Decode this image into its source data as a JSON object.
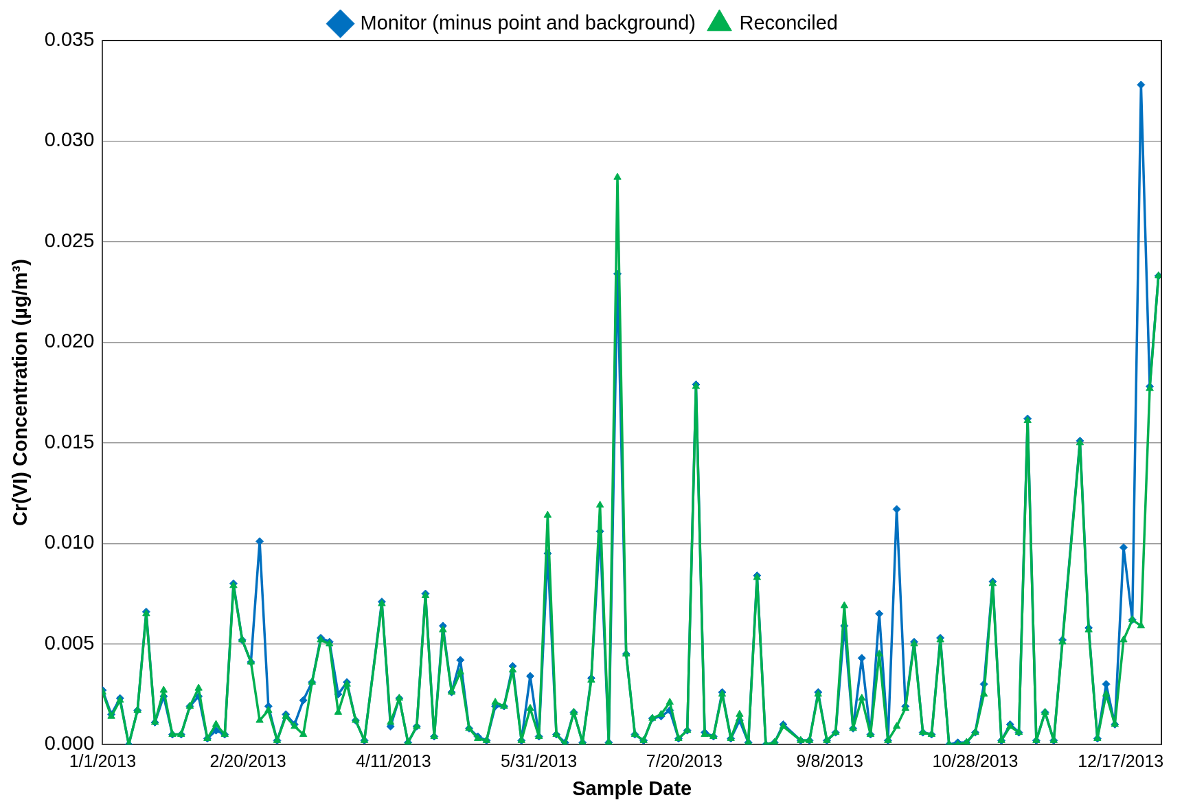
{
  "chart_data": {
    "type": "line",
    "xlabel": "Sample Date",
    "ylabel": "Cr(VI) Concentration (µg/m³)",
    "x": [
      "2013-01-01",
      "2013-01-04",
      "2013-01-07",
      "2013-01-10",
      "2013-01-13",
      "2013-01-16",
      "2013-01-19",
      "2013-01-22",
      "2013-01-25",
      "2013-01-28",
      "2013-01-31",
      "2013-02-03",
      "2013-02-06",
      "2013-02-09",
      "2013-02-12",
      "2013-02-15",
      "2013-02-18",
      "2013-02-21",
      "2013-02-24",
      "2013-02-27",
      "2013-03-02",
      "2013-03-05",
      "2013-03-08",
      "2013-03-11",
      "2013-03-14",
      "2013-03-17",
      "2013-03-20",
      "2013-03-23",
      "2013-03-26",
      "2013-03-29",
      "2013-04-01",
      "2013-04-07",
      "2013-04-10",
      "2013-04-13",
      "2013-04-16",
      "2013-04-19",
      "2013-04-22",
      "2013-04-25",
      "2013-04-28",
      "2013-05-01",
      "2013-05-04",
      "2013-05-07",
      "2013-05-10",
      "2013-05-13",
      "2013-05-16",
      "2013-05-19",
      "2013-05-22",
      "2013-05-25",
      "2013-05-28",
      "2013-05-31",
      "2013-06-03",
      "2013-06-06",
      "2013-06-09",
      "2013-06-12",
      "2013-06-15",
      "2013-06-18",
      "2013-06-21",
      "2013-06-24",
      "2013-06-27",
      "2013-06-30",
      "2013-07-03",
      "2013-07-06",
      "2013-07-09",
      "2013-07-12",
      "2013-07-15",
      "2013-07-18",
      "2013-07-21",
      "2013-07-24",
      "2013-07-27",
      "2013-07-30",
      "2013-08-02",
      "2013-08-05",
      "2013-08-08",
      "2013-08-11",
      "2013-08-14",
      "2013-08-17",
      "2013-08-20",
      "2013-08-23",
      "2013-08-29",
      "2013-09-01",
      "2013-09-04",
      "2013-09-07",
      "2013-09-10",
      "2013-09-13",
      "2013-09-16",
      "2013-09-19",
      "2013-09-22",
      "2013-09-25",
      "2013-09-28",
      "2013-10-01",
      "2013-10-04",
      "2013-10-07",
      "2013-10-10",
      "2013-10-13",
      "2013-10-16",
      "2013-10-19",
      "2013-10-22",
      "2013-10-25",
      "2013-10-28",
      "2013-10-31",
      "2013-11-03",
      "2013-11-06",
      "2013-11-09",
      "2013-11-12",
      "2013-11-15",
      "2013-11-18",
      "2013-11-21",
      "2013-11-24",
      "2013-11-27",
      "2013-12-03",
      "2013-12-06",
      "2013-12-09",
      "2013-12-12",
      "2013-12-15",
      "2013-12-18",
      "2013-12-21",
      "2013-12-24",
      "2013-12-27",
      "2013-12-30"
    ],
    "series": [
      {
        "name": "Monitor (minus point and background)",
        "color": "#0070c0",
        "marker": "diamond",
        "values": [
          0.0027,
          0.0015,
          0.0023,
          0.0,
          0.0017,
          0.0066,
          0.0011,
          0.0024,
          0.0005,
          0.0005,
          0.0019,
          0.0024,
          0.0003,
          0.0007,
          0.0005,
          0.008,
          0.0052,
          0.0041,
          0.0101,
          0.0019,
          0.0002,
          0.0015,
          0.001,
          0.0022,
          0.0031,
          0.0053,
          0.0051,
          0.0025,
          0.0031,
          0.0012,
          0.0002,
          0.0071,
          0.0009,
          0.0023,
          0.0001,
          0.0009,
          0.0075,
          0.0004,
          0.0059,
          0.0026,
          0.0042,
          0.0008,
          0.0004,
          0.0002,
          0.0019,
          0.0019,
          0.0039,
          0.0002,
          0.0034,
          0.0004,
          0.0095,
          0.0005,
          0.0001,
          0.0016,
          0.0001,
          0.0033,
          0.0106,
          0.0001,
          0.0234,
          0.0045,
          0.0005,
          0.0002,
          0.0013,
          0.0014,
          0.0017,
          0.0003,
          0.0007,
          0.0179,
          0.0006,
          0.0004,
          0.0026,
          0.0003,
          0.0012,
          0.0001,
          0.0084,
          0.0,
          0.0001,
          0.001,
          0.0002,
          0.0002,
          0.0026,
          0.0002,
          0.0006,
          0.0059,
          0.0008,
          0.0043,
          0.0005,
          0.0065,
          0.0002,
          0.0117,
          0.0019,
          0.0051,
          0.0006,
          0.0005,
          0.0053,
          0.0,
          0.0001,
          0.0001,
          0.0006,
          0.003,
          0.0081,
          0.0002,
          0.001,
          0.0006,
          0.0162,
          0.0002,
          0.0016,
          0.0002,
          0.0052,
          0.0151,
          0.0058,
          0.0003,
          0.003,
          0.001,
          0.0098,
          0.0062,
          0.0328,
          0.0178,
          0.0233
        ]
      },
      {
        "name": "Reconciled",
        "color": "#00b050",
        "marker": "triangle",
        "values": [
          0.0026,
          0.0014,
          0.0022,
          0.0,
          0.0017,
          0.0065,
          0.0011,
          0.0027,
          0.0005,
          0.0005,
          0.0019,
          0.0028,
          0.0003,
          0.001,
          0.0005,
          0.0079,
          0.0052,
          0.0041,
          0.0012,
          0.0017,
          0.0002,
          0.0014,
          0.0009,
          0.0005,
          0.0031,
          0.0052,
          0.005,
          0.0016,
          0.003,
          0.0012,
          0.0002,
          0.007,
          0.0011,
          0.0023,
          0.0001,
          0.0009,
          0.0074,
          0.0004,
          0.0057,
          0.0026,
          0.0036,
          0.0008,
          0.0003,
          0.0002,
          0.0021,
          0.0019,
          0.0037,
          0.0002,
          0.0018,
          0.0004,
          0.0114,
          0.0005,
          0.0,
          0.0016,
          0.0001,
          0.0032,
          0.0119,
          0.0001,
          0.0282,
          0.0045,
          0.0005,
          0.0002,
          0.0013,
          0.0015,
          0.0021,
          0.0003,
          0.0007,
          0.0178,
          0.0005,
          0.0004,
          0.0025,
          0.0003,
          0.0015,
          0.0001,
          0.0083,
          0.0,
          0.0001,
          0.0009,
          0.0002,
          0.0002,
          0.0025,
          0.0002,
          0.0006,
          0.0069,
          0.0008,
          0.0023,
          0.0005,
          0.0045,
          0.0002,
          0.0009,
          0.0018,
          0.005,
          0.0006,
          0.0005,
          0.0052,
          0.0,
          0.0,
          0.0001,
          0.0006,
          0.0025,
          0.008,
          0.0002,
          0.0009,
          0.0006,
          0.0161,
          0.0002,
          0.0016,
          0.0002,
          0.0051,
          0.015,
          0.0057,
          0.0003,
          0.0025,
          0.001,
          0.0052,
          0.0062,
          0.0059,
          0.0177,
          0.0233
        ]
      }
    ],
    "xlim": [
      "2013-01-01",
      "2013-12-31"
    ],
    "xticks": [
      {
        "value": "2013-01-01",
        "label": "1/1/2013"
      },
      {
        "value": "2013-02-20",
        "label": "2/20/2013"
      },
      {
        "value": "2013-04-11",
        "label": "4/11/2013"
      },
      {
        "value": "2013-05-31",
        "label": "5/31/2013"
      },
      {
        "value": "2013-07-20",
        "label": "7/20/2013"
      },
      {
        "value": "2013-09-08",
        "label": "9/8/2013"
      },
      {
        "value": "2013-10-28",
        "label": "10/28/2013"
      },
      {
        "value": "2013-12-17",
        "label": "12/17/2013"
      }
    ],
    "ylim": [
      0,
      0.035
    ],
    "yticks": [
      {
        "value": 0,
        "label": "0.000"
      },
      {
        "value": 0.005,
        "label": "0.005"
      },
      {
        "value": 0.01,
        "label": "0.010"
      },
      {
        "value": 0.015,
        "label": "0.015"
      },
      {
        "value": 0.02,
        "label": "0.020"
      },
      {
        "value": 0.025,
        "label": "0.025"
      },
      {
        "value": 0.03,
        "label": "0.030"
      },
      {
        "value": 0.035,
        "label": "0.035"
      }
    ],
    "grid": "y",
    "legend": "top",
    "line_style": "solid"
  }
}
